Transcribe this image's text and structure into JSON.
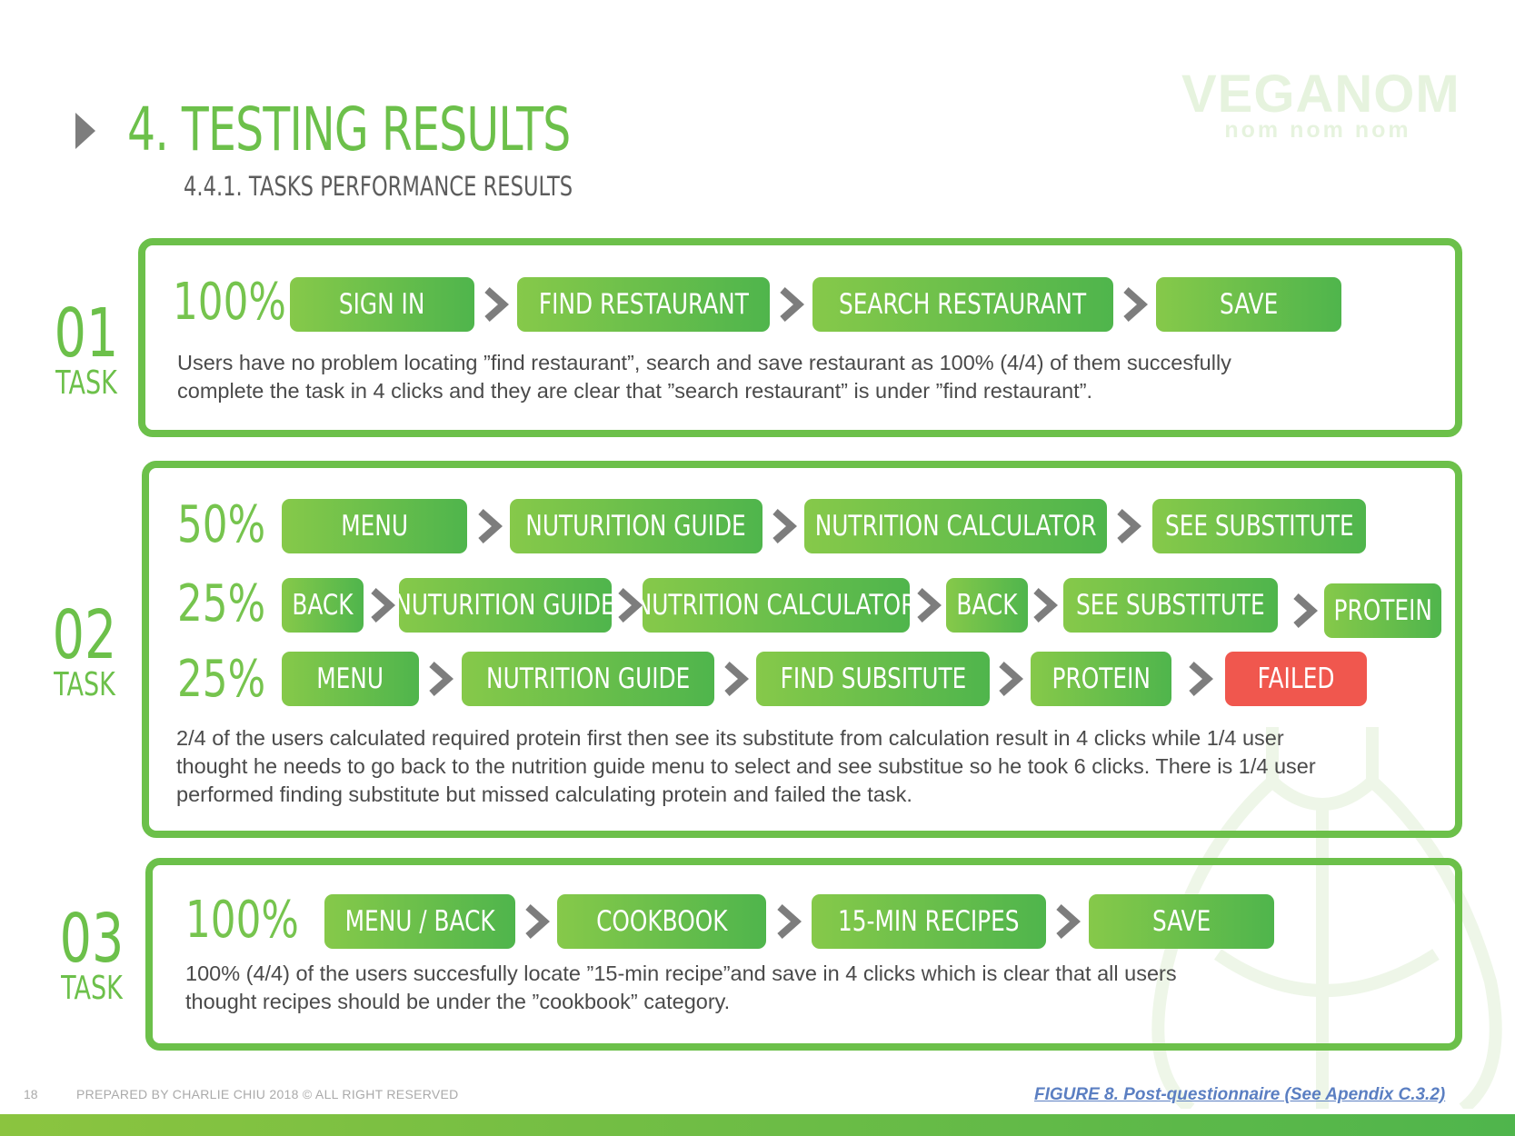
{
  "header": {
    "title": "4. TESTING RESULTS",
    "subtitle": "4.4.1. TASKS PERFORMANCE RESULTS"
  },
  "logo": {
    "main": "VEGANOM",
    "tagline": "nom nom nom"
  },
  "tasks": [
    {
      "number": "01",
      "label": "TASK",
      "paths": [
        {
          "percent": "100%",
          "steps": [
            "SIGN IN",
            "FIND RESTAURANT",
            "SEARCH RESTAURANT",
            "SAVE"
          ]
        }
      ],
      "description_lines": [
        "Users have no problem locating ”find restaurant”, search and save restaurant as 100% (4/4) of them succesfully",
        "complete the task in 4 clicks and they are clear that ”search restaurant” is under ”find restaurant”."
      ]
    },
    {
      "number": "02",
      "label": "TASK",
      "paths": [
        {
          "percent": "50%",
          "steps": [
            "MENU",
            "NUTURITION GUIDE",
            "NUTRITION CALCULATOR",
            "SEE SUBSTITUTE"
          ]
        },
        {
          "percent": "25%",
          "steps": [
            "BACK",
            "NUTURITION GUIDE",
            "NUTRITION CALCULATOR",
            "BACK",
            "SEE SUBSTITUTE",
            "PROTEIN"
          ]
        },
        {
          "percent": "25%",
          "steps": [
            "MENU",
            "NUTRITION GUIDE",
            "FIND SUBSITUTE",
            "PROTEIN",
            "FAILED"
          ]
        }
      ],
      "description_lines": [
        "2/4 of the users calculated required protein first then see its substitute from calculation result in 4 clicks while 1/4 user",
        "thought he needs to go back to the nutrition guide menu to select and see substitue so he took 6 clicks. There is 1/4 user",
        "performed finding substitute but missed calculating protein and failed the task."
      ]
    },
    {
      "number": "03",
      "label": "TASK",
      "paths": [
        {
          "percent": "100%",
          "steps": [
            "MENU / BACK",
            "COOKBOOK",
            "15-MIN RECIPES",
            "SAVE"
          ]
        }
      ],
      "description_lines": [
        "100% (4/4) of the users succesfully locate ”15-min recipe”and save in 4 clicks which is clear that all users",
        "thought recipes should be under the ”cookbook” category."
      ]
    }
  ],
  "footer": {
    "page_number": "18",
    "prepared_by": "PREPARED BY CHARLIE CHIU 2018  © ALL RIGHT RESERVED",
    "figure_link": "FIGURE 8. Post-questionnaire  (See Apendix C.3.2)"
  },
  "colors": {
    "accent": "#6cc04a",
    "failed": "#f0574e",
    "chevron": "#7d7d7d",
    "link": "#5b7fc2"
  }
}
